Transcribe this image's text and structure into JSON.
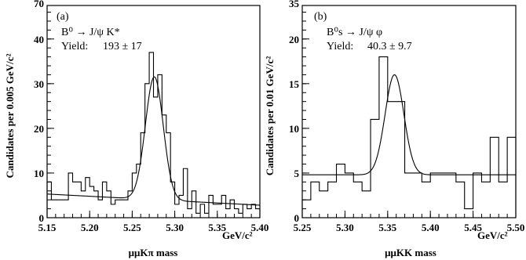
{
  "chart_data": [
    {
      "type": "histogram",
      "panel_label": "(a)",
      "decay": "B⁰ → J/ψ K*",
      "yield_label": "Yield:",
      "yield_value": "193 ± 17",
      "xlabel": "μμKπ mass",
      "xunit": "GeV/c²",
      "ylabel": "Candidates per 0.005 GeV/c²",
      "xlim": [
        5.15,
        5.4
      ],
      "ylim": [
        0,
        40
      ],
      "xticks": [
        "5.15",
        "5.20",
        "5.25",
        "5.30",
        "5.35",
        "5.40"
      ],
      "yticks": [
        "0",
        "10",
        "20",
        "30",
        "40"
      ],
      "top_tick_partial": "70",
      "bin_width": 0.005,
      "bin_start": 5.15,
      "counts": [
        8,
        4,
        4,
        4,
        4,
        10,
        8,
        8,
        6,
        9,
        7,
        6,
        4,
        8,
        6,
        3,
        4,
        4,
        4,
        6,
        10,
        12,
        19,
        30,
        37,
        27,
        32,
        23,
        19,
        8,
        3,
        5,
        11,
        2,
        6,
        1,
        3,
        1,
        5,
        3,
        3,
        5,
        2,
        4,
        2,
        1,
        3,
        2,
        3,
        2
      ],
      "fit": {
        "background_at_start": 5.3,
        "background_at_end": 2.8,
        "mean": 5.276,
        "sigma": 0.0105,
        "peak_height": 27.5
      }
    },
    {
      "type": "histogram",
      "panel_label": "(b)",
      "decay": "B⁰s → J/ψ φ",
      "yield_label": "Yield:",
      "yield_value": "40.3 ± 9.7",
      "xlabel": "μμKK mass",
      "xunit": "GeV/c²",
      "ylabel": "Candidates per 0.01 GeV/c²",
      "xlim": [
        5.25,
        5.5
      ],
      "ylim": [
        0,
        20
      ],
      "xticks": [
        "5.25",
        "5.30",
        "5.35",
        "5.40",
        "5.45",
        "5.50"
      ],
      "yticks": [
        "0",
        "5",
        "10",
        "15",
        "20"
      ],
      "top_tick_partial": "35",
      "bin_width": 0.01,
      "bin_start": 5.25,
      "counts": [
        2,
        4,
        3,
        4,
        6,
        5,
        4,
        3,
        11,
        18,
        13,
        13,
        5,
        5,
        4,
        5,
        5,
        5,
        4,
        1,
        5,
        4,
        9,
        4,
        9
      ],
      "fit": {
        "background_at_start": 4.8,
        "background_at_end": 4.8,
        "mean": 5.358,
        "sigma": 0.011,
        "peak_height": 11.2
      }
    }
  ]
}
